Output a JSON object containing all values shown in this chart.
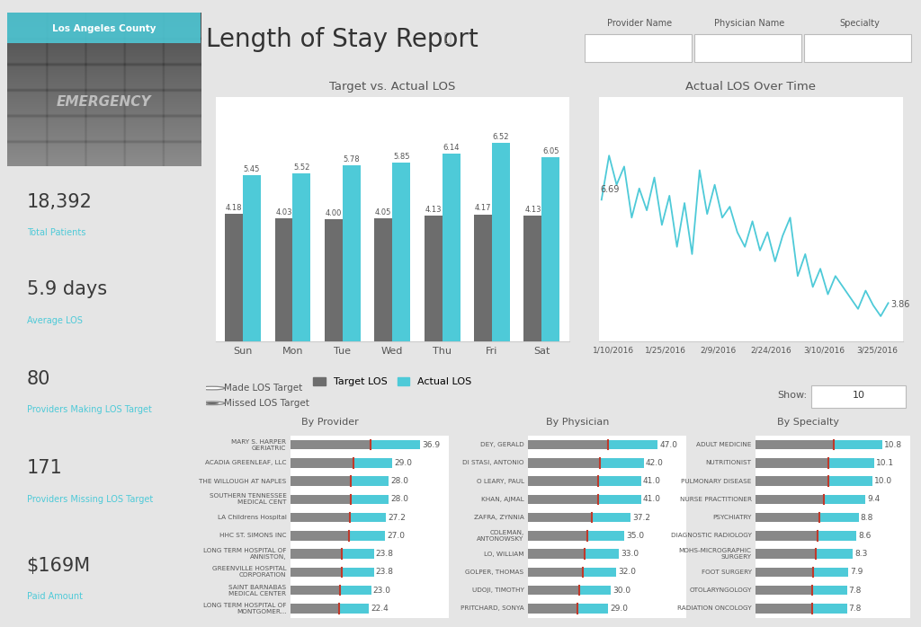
{
  "title": "Length of Stay Report",
  "bg_color": "#e5e5e5",
  "panel_color": "#ffffff",
  "image_text": "Los Angeles County",
  "cyan_color": "#4ecad8",
  "label_color": "#4ecad8",
  "kpis": [
    {
      "value": "18,392",
      "label": "Total Patients",
      "bg": "#e5e5e5"
    },
    {
      "value": "5.9 days",
      "label": "Average LOS",
      "bg": "#f0f0f0"
    },
    {
      "value": "80",
      "label": "Providers Making LOS Target",
      "bg": "#e5e5e5"
    },
    {
      "value": "171",
      "label": "Providers Missing LOS Target",
      "bg": "#f0f0f0"
    },
    {
      "value": "$169M",
      "label": "Paid Amount",
      "bg": "#e5e5e5"
    }
  ],
  "bar_days": [
    "Sun",
    "Mon",
    "Tue",
    "Wed",
    "Thu",
    "Fri",
    "Sat"
  ],
  "bar_target": [
    4.18,
    4.03,
    4.0,
    4.05,
    4.13,
    4.17,
    4.13
  ],
  "bar_actual": [
    5.45,
    5.52,
    5.78,
    5.85,
    6.14,
    6.52,
    6.05
  ],
  "bar_title": "Target vs. Actual LOS",
  "bar_target_color": "#6d6d6d",
  "bar_actual_color": "#4ecad8",
  "line_title": "Actual LOS Over Time",
  "line_color": "#4ecad8",
  "line_x_labels": [
    "1/10/2016",
    "1/25/2016",
    "2/9/2016",
    "2/24/2016",
    "3/10/2016",
    "3/25/2016"
  ],
  "line_start_val": "6.69",
  "line_end_val": "3.86",
  "line_data": [
    6.69,
    7.9,
    7.1,
    7.6,
    6.2,
    7.0,
    6.4,
    7.3,
    6.0,
    6.8,
    5.4,
    6.6,
    5.2,
    7.5,
    6.3,
    7.1,
    6.2,
    6.5,
    5.8,
    5.4,
    6.1,
    5.3,
    5.8,
    5.0,
    5.7,
    6.2,
    4.6,
    5.2,
    4.3,
    4.8,
    4.1,
    4.6,
    4.3,
    4.0,
    3.7,
    4.2,
    3.8,
    3.5,
    3.86
  ],
  "radio_options": [
    "Made LOS Target",
    "Missed LOS Target"
  ],
  "radio_selected": 1,
  "filter_labels": [
    "Provider Name",
    "Physician Name",
    "Specialty"
  ],
  "provider_title": "By Provider",
  "provider_names": [
    "MARY S. HARPER\nGERIATRIC",
    "ACADIA GREENLEAF, LLC",
    "THE WILLOUGH AT NAPLES",
    "SOUTHERN TENNESSEE\nMEDICAL CENT",
    "LA Childrens Hospital",
    "HHC ST. SIMONS INC",
    "LONG TERM HOSPITAL OF\nANNISTON,",
    "GREENVILLE HOSPITAL\nCORPORATION",
    "SAINT BARNABAS\nMEDICAL CENTER",
    "LONG TERM HOSPITAL OF\nMONTGOMER..."
  ],
  "provider_values": [
    36.9,
    29.0,
    28.0,
    28.0,
    27.2,
    27.0,
    23.8,
    23.8,
    23.0,
    22.4
  ],
  "physician_title": "By Physician",
  "physician_names": [
    "DEY, GERALD",
    "DI STASI, ANTONIO",
    "O LEARY, PAUL",
    "KHAN, AJMAL",
    "ZAFRA, ZYNNIA",
    "COLEMAN,\nANTONOWSKY",
    "LO, WILLIAM",
    "GOLPER, THOMAS",
    "UDOJI, TIMOTHY",
    "PRITCHARD, SONYA"
  ],
  "physician_values": [
    47.0,
    42.0,
    41.0,
    41.0,
    37.2,
    35.0,
    33.0,
    32.0,
    30.0,
    29.0
  ],
  "specialty_title": "By Specialty",
  "specialty_names": [
    "ADULT MEDICINE",
    "NUTRITIONIST",
    "PULMONARY DISEASE",
    "NURSE PRACTITIONER",
    "PSYCHIATRY",
    "DIAGNOSTIC RADIOLOGY",
    "MOHS-MICROGRAPHIC\nSURGERY",
    "FOOT SURGERY",
    "OTOLARYNGOLOGY",
    "RADIATION ONCOLOGY"
  ],
  "specialty_values": [
    10.8,
    10.1,
    10.0,
    9.4,
    8.8,
    8.6,
    8.3,
    7.9,
    7.8,
    7.8
  ],
  "red_marker_color": "#c0392b"
}
